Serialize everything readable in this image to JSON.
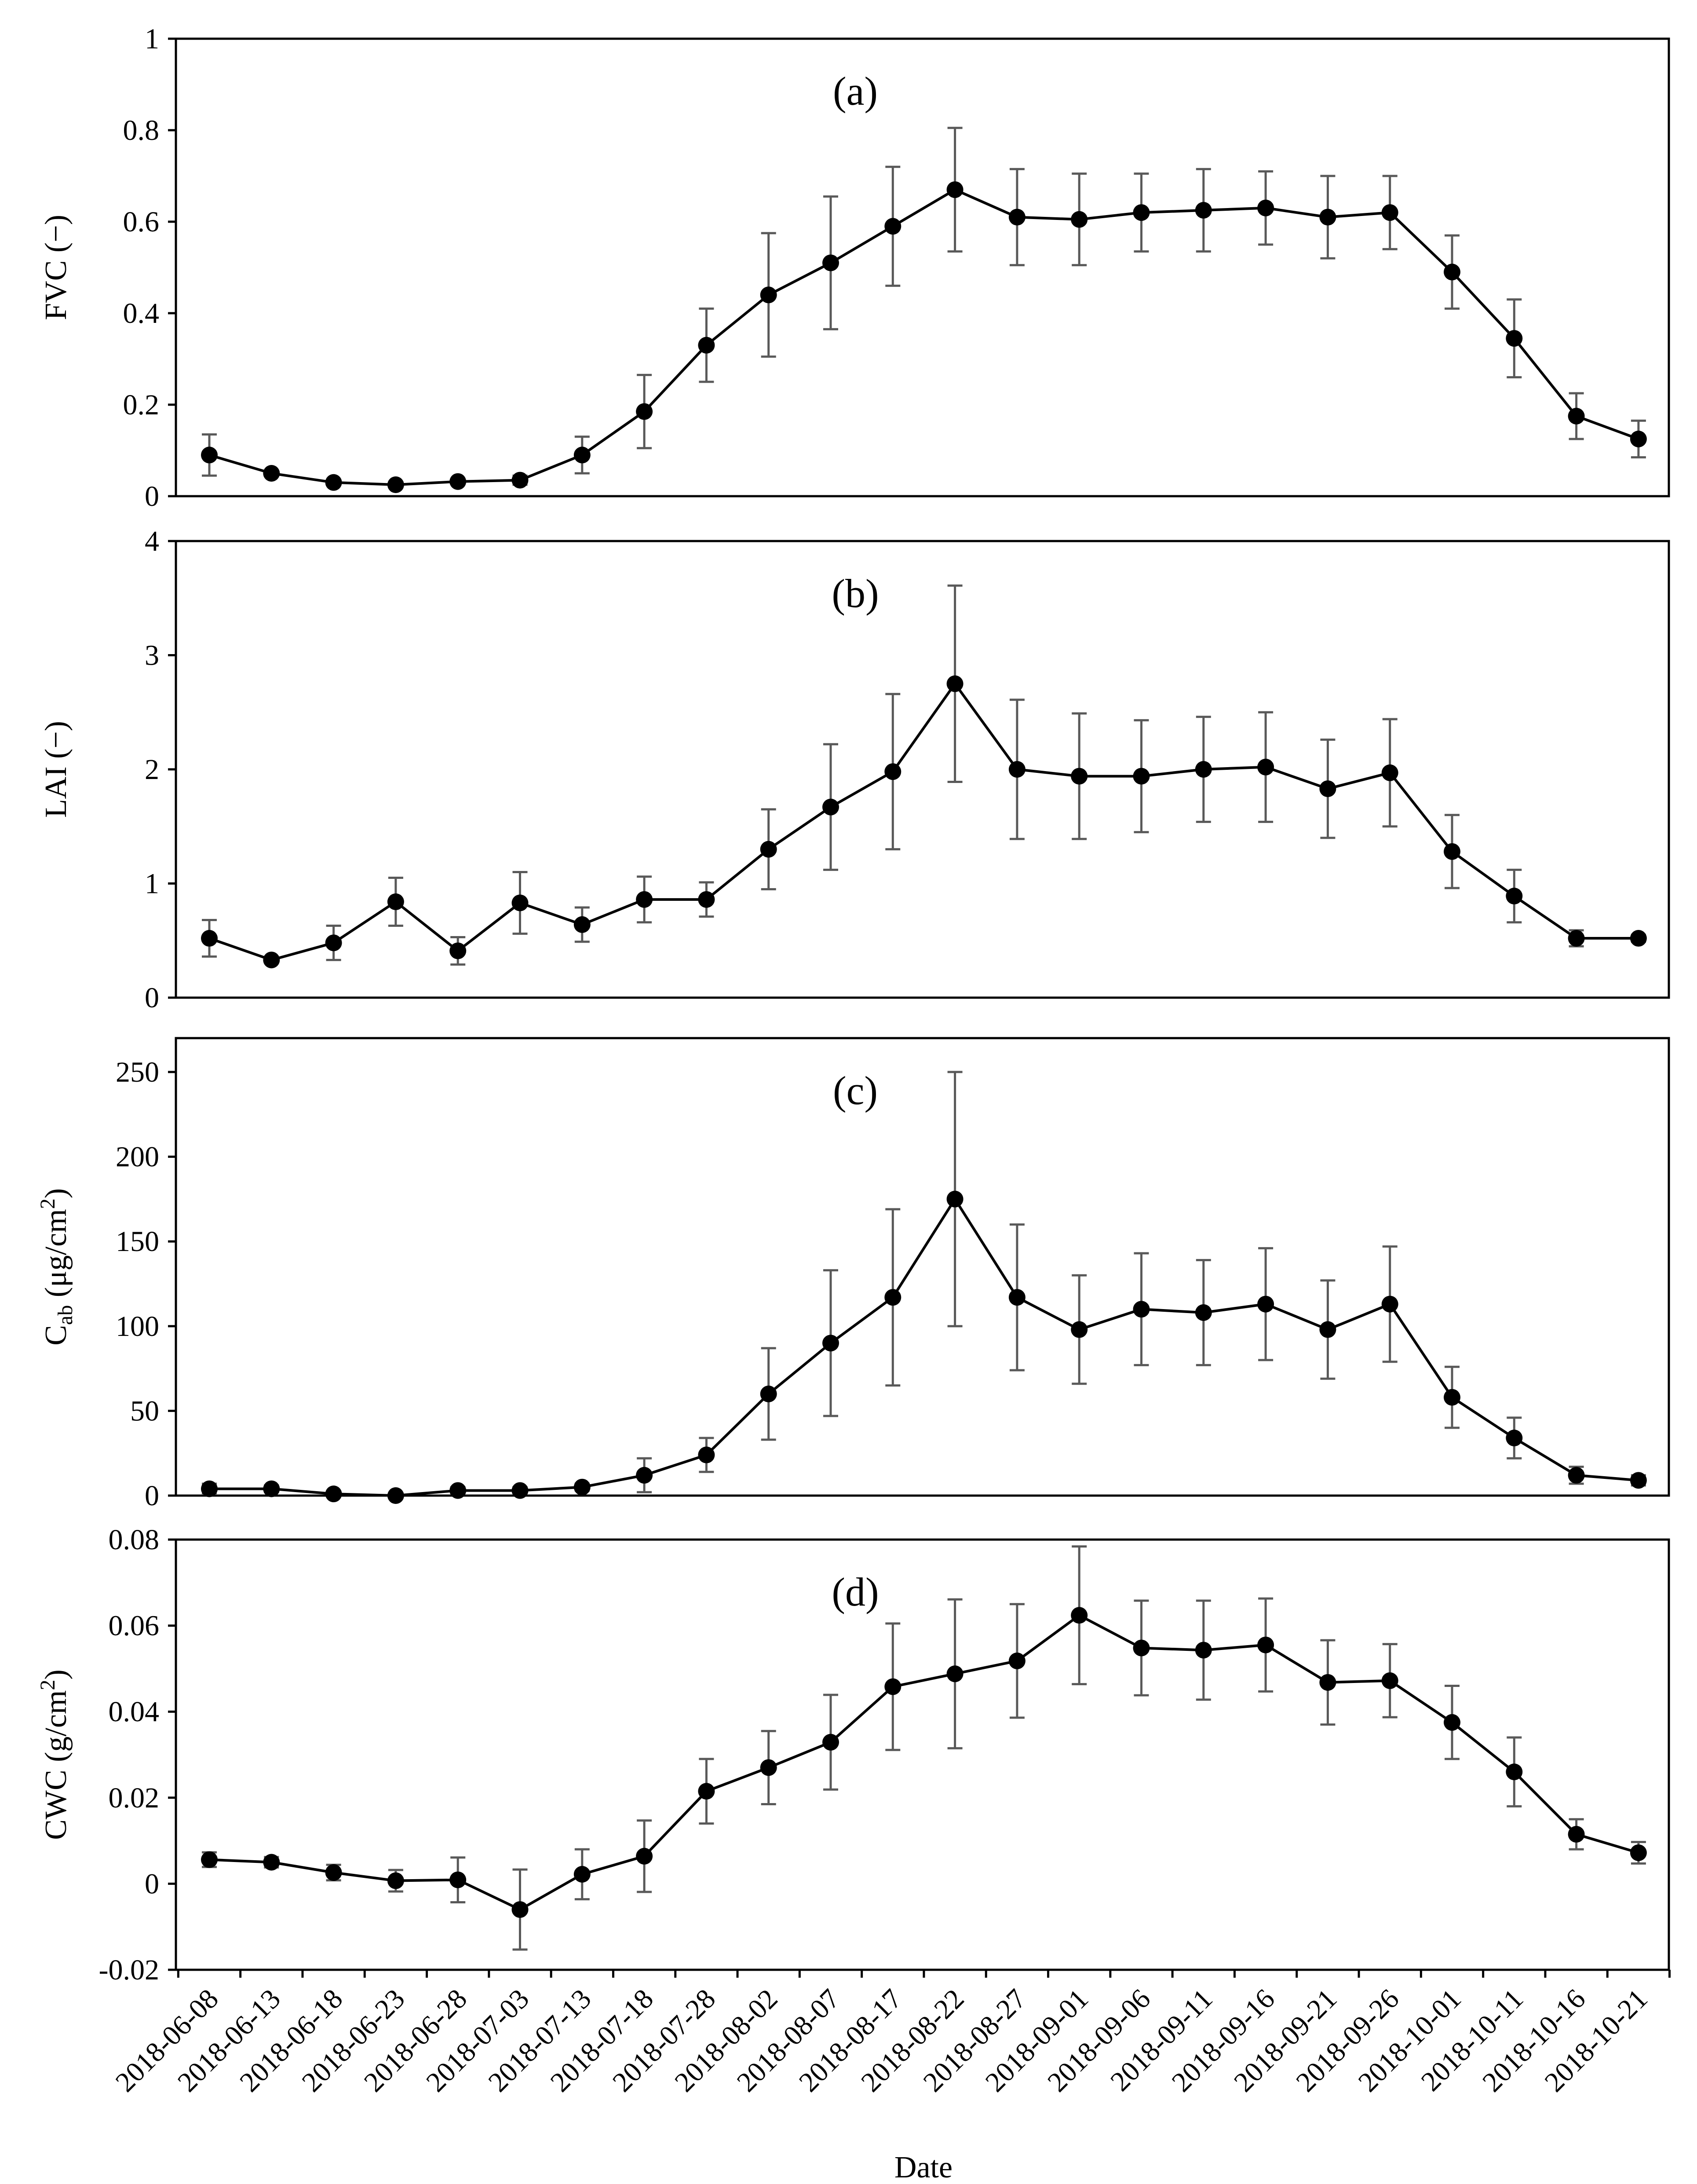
{
  "chart_data": {
    "type": "line",
    "x_title": "Date",
    "categories": [
      "2018-06-08",
      "2018-06-13",
      "2018-06-18",
      "2018-06-23",
      "2018-06-28",
      "2018-07-03",
      "2018-07-13",
      "2018-07-18",
      "2018-07-28",
      "2018-08-02",
      "2018-08-07",
      "2018-08-17",
      "2018-08-22",
      "2018-08-27",
      "2018-09-01",
      "2018-09-06",
      "2018-09-11",
      "2018-09-16",
      "2018-09-21",
      "2018-09-26",
      "2018-10-01",
      "2018-10-11",
      "2018-10-16",
      "2018-10-21"
    ],
    "panels": [
      {
        "id": "a",
        "panel_label": "(a)",
        "ylabel": "FVC (−)",
        "ylim": [
          0,
          1
        ],
        "yticks": [
          0,
          0.2,
          0.4,
          0.6,
          0.8,
          1
        ],
        "ytick_labels": [
          "0",
          "0.2",
          "0.4",
          "0.6",
          "0.8",
          "1"
        ],
        "values": [
          0.09,
          0.05,
          0.03,
          0.025,
          0.032,
          0.035,
          0.09,
          0.185,
          0.33,
          0.44,
          0.51,
          0.59,
          0.67,
          0.61,
          0.605,
          0.62,
          0.625,
          0.63,
          0.61,
          0.62,
          0.49,
          0.345,
          0.175,
          0.125
        ],
        "errors": [
          0.045,
          0.005,
          0.005,
          0.005,
          0.005,
          0.01,
          0.04,
          0.08,
          0.08,
          0.135,
          0.145,
          0.13,
          0.135,
          0.105,
          0.1,
          0.085,
          0.09,
          0.08,
          0.09,
          0.08,
          0.08,
          0.085,
          0.05,
          0.04
        ]
      },
      {
        "id": "b",
        "panel_label": "(b)",
        "ylabel": "LAI (−)",
        "ylim": [
          0,
          4
        ],
        "yticks": [
          0,
          1,
          2,
          3,
          4
        ],
        "ytick_labels": [
          "0",
          "1",
          "2",
          "3",
          "4"
        ],
        "values": [
          0.52,
          0.33,
          0.48,
          0.84,
          0.41,
          0.83,
          0.64,
          0.86,
          0.86,
          1.3,
          1.67,
          1.98,
          2.75,
          2.0,
          1.94,
          1.94,
          2.0,
          2.02,
          1.83,
          1.97,
          1.28,
          0.89,
          0.52,
          0.52
        ],
        "errors": [
          0.16,
          0.02,
          0.15,
          0.21,
          0.12,
          0.27,
          0.15,
          0.2,
          0.15,
          0.35,
          0.55,
          0.68,
          0.86,
          0.61,
          0.55,
          0.49,
          0.46,
          0.48,
          0.43,
          0.47,
          0.32,
          0.23,
          0.07,
          0.03
        ]
      },
      {
        "id": "c",
        "panel_label": "(c)",
        "ylabel": "C",
        "ylabel_sub": "ab",
        "ylabel_unit": " (μg/cm",
        "ylabel_sup": "2",
        "ylabel_close": ")",
        "ylim": [
          0,
          270
        ],
        "yticks": [
          0,
          50,
          100,
          150,
          200,
          250
        ],
        "ytick_labels": [
          "0",
          "50",
          "100",
          "150",
          "200",
          "250"
        ],
        "values": [
          4,
          4,
          1,
          0,
          3,
          3,
          5,
          12,
          24,
          60,
          90,
          117,
          175,
          117,
          98,
          110,
          108,
          113,
          98,
          113,
          58,
          34,
          12,
          9
        ],
        "errors": [
          3,
          2,
          1,
          1,
          2,
          2,
          2,
          10,
          10,
          27,
          43,
          52,
          75,
          43,
          32,
          33,
          31,
          33,
          29,
          34,
          18,
          12,
          5,
          3
        ]
      },
      {
        "id": "d",
        "panel_label": "(d)",
        "ylabel": "CWC (g/cm",
        "ylabel_sup": "2",
        "ylabel_close": ")",
        "ylim": [
          -0.02,
          0.08
        ],
        "yticks": [
          -0.02,
          0,
          0.02,
          0.04,
          0.06,
          0.08
        ],
        "ytick_labels": [
          "-0.02",
          "0",
          "0.02",
          "0.04",
          "0.06",
          "0.08"
        ],
        "values": [
          0.0056,
          0.005,
          0.0026,
          0.0007,
          0.0009,
          -0.006,
          0.0022,
          0.0064,
          0.0215,
          0.027,
          0.0329,
          0.0458,
          0.0488,
          0.0518,
          0.0624,
          0.0548,
          0.0543,
          0.0555,
          0.0468,
          0.0472,
          0.0375,
          0.026,
          0.0115,
          0.0072
        ],
        "errors": [
          0.0017,
          0.0012,
          0.0018,
          0.0025,
          0.0052,
          0.0093,
          0.0058,
          0.0083,
          0.0075,
          0.0085,
          0.011,
          0.0147,
          0.0173,
          0.0132,
          0.016,
          0.011,
          0.0115,
          0.0108,
          0.0098,
          0.0085,
          0.0085,
          0.008,
          0.0035,
          0.0025
        ]
      }
    ]
  }
}
